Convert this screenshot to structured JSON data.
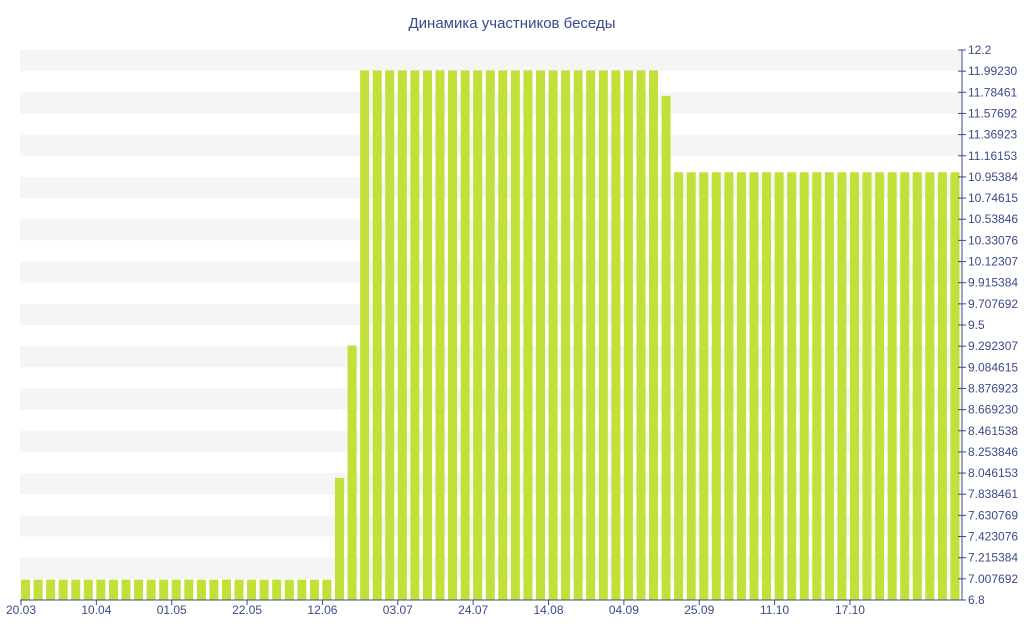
{
  "chart_data": {
    "type": "bar",
    "title": "Динамика участников беседы",
    "bar_color": "#c1e03a",
    "band_color": "#f5f5f5",
    "axis_color": "#3b4a8a",
    "ylim": [
      6.8,
      12.2
    ],
    "y_ticks": [
      "12.2",
      "11.99230",
      "11.78461",
      "11.57692",
      "11.36923",
      "11.16153",
      "10.95384",
      "10.74615",
      "10.53846",
      "10.33076",
      "10.12307",
      "9.915384",
      "9.707692",
      "9.5",
      "9.292307",
      "9.084615",
      "8.876923",
      "8.669230",
      "8.461538",
      "8.253846",
      "8.046153",
      "7.838461",
      "7.630769",
      "7.423076",
      "7.215384",
      "7.007692",
      "6.8"
    ],
    "x_tick_labels": [
      "20.03",
      "10.04",
      "01.05",
      "22.05",
      "12.06",
      "03.07",
      "24.07",
      "14.08",
      "04.09",
      "25.09",
      "11.10",
      "17.10"
    ],
    "x_tick_indices": [
      0,
      6,
      12,
      18,
      24,
      30,
      36,
      42,
      48,
      54,
      60,
      66
    ],
    "values": [
      7,
      7,
      7,
      7,
      7,
      7,
      7,
      7,
      7,
      7,
      7,
      7,
      7,
      7,
      7,
      7,
      7,
      7,
      7,
      7,
      7,
      7,
      7,
      7,
      7,
      8,
      9.3,
      12,
      12,
      12,
      12,
      12,
      12,
      12,
      12,
      12,
      12,
      12,
      12,
      12,
      12,
      12,
      12,
      12,
      12,
      12,
      12,
      12,
      12,
      12,
      12,
      11.75,
      11,
      11,
      11,
      11,
      11,
      11,
      11,
      11,
      11,
      11,
      11,
      11,
      11,
      11,
      11,
      11,
      11,
      11,
      11,
      11,
      11,
      11,
      11
    ]
  }
}
